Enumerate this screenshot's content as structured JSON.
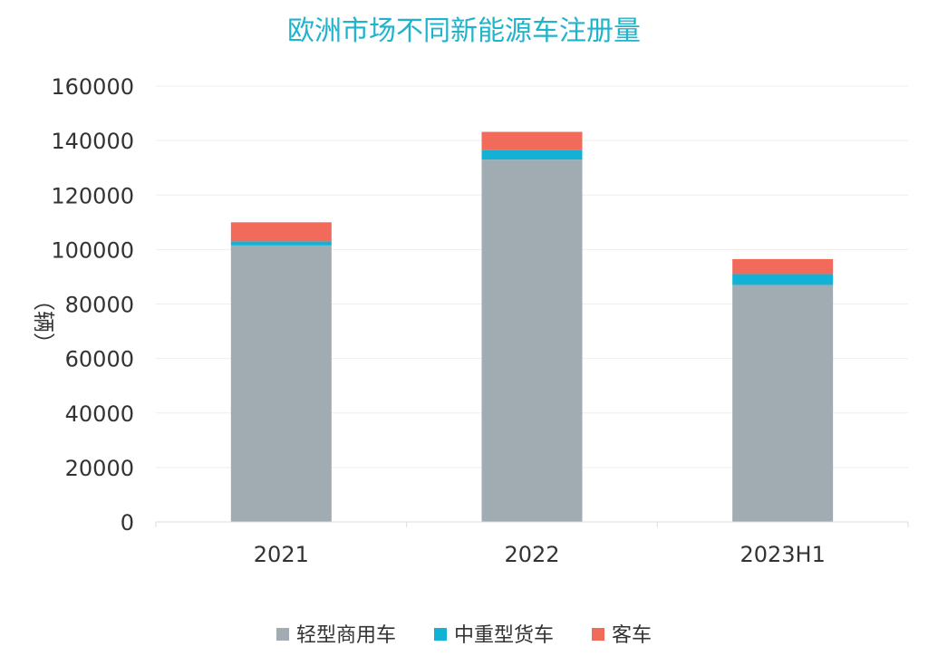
{
  "chart_data": {
    "type": "bar",
    "stacked": true,
    "title": "欧洲市场不同新能源车注册量",
    "xlabel": "",
    "ylabel": "（辆）",
    "categories": [
      "2021",
      "2022",
      "2023H1"
    ],
    "ylim": [
      0,
      160000
    ],
    "yticks": [
      0,
      20000,
      40000,
      60000,
      80000,
      100000,
      120000,
      140000,
      160000
    ],
    "grid": true,
    "legend_position": "bottom",
    "series": [
      {
        "name": "轻型商用车",
        "color": "#a1abb2",
        "values": [
          101500,
          133000,
          87000
        ]
      },
      {
        "name": "中重型货车",
        "color": "#13b1d4",
        "values": [
          1500,
          3500,
          4000
        ]
      },
      {
        "name": "客车",
        "color": "#f26a5a",
        "values": [
          7000,
          6700,
          5500
        ]
      }
    ]
  }
}
